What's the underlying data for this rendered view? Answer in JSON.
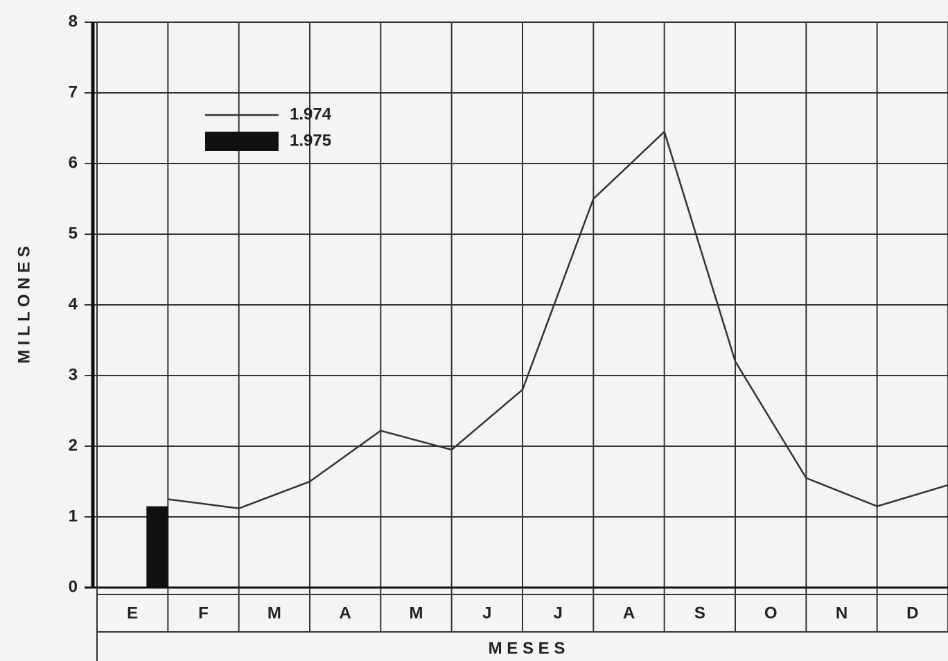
{
  "chart_data": {
    "type": "line",
    "x_label": "M E S E S",
    "y_label": "M I L L O N E S",
    "categories": [
      "E",
      "F",
      "M",
      "A",
      "M",
      "J",
      "J",
      "A",
      "S",
      "O",
      "N",
      "D"
    ],
    "series": [
      {
        "name": "1.974",
        "kind": "line",
        "color": "#333333",
        "values": [
          1.25,
          1.12,
          1.5,
          2.22,
          1.95,
          2.8,
          5.5,
          6.45,
          3.2,
          1.55,
          1.15,
          1.45
        ]
      },
      {
        "name": "1.975",
        "kind": "bar",
        "color": "#111111",
        "values": [
          1.15,
          null,
          null,
          null,
          null,
          null,
          null,
          null,
          null,
          null,
          null,
          null
        ]
      }
    ],
    "ylim": [
      0,
      8
    ],
    "yticks": [
      0,
      1,
      2,
      3,
      4,
      5,
      6,
      7,
      8
    ],
    "grid": true
  }
}
